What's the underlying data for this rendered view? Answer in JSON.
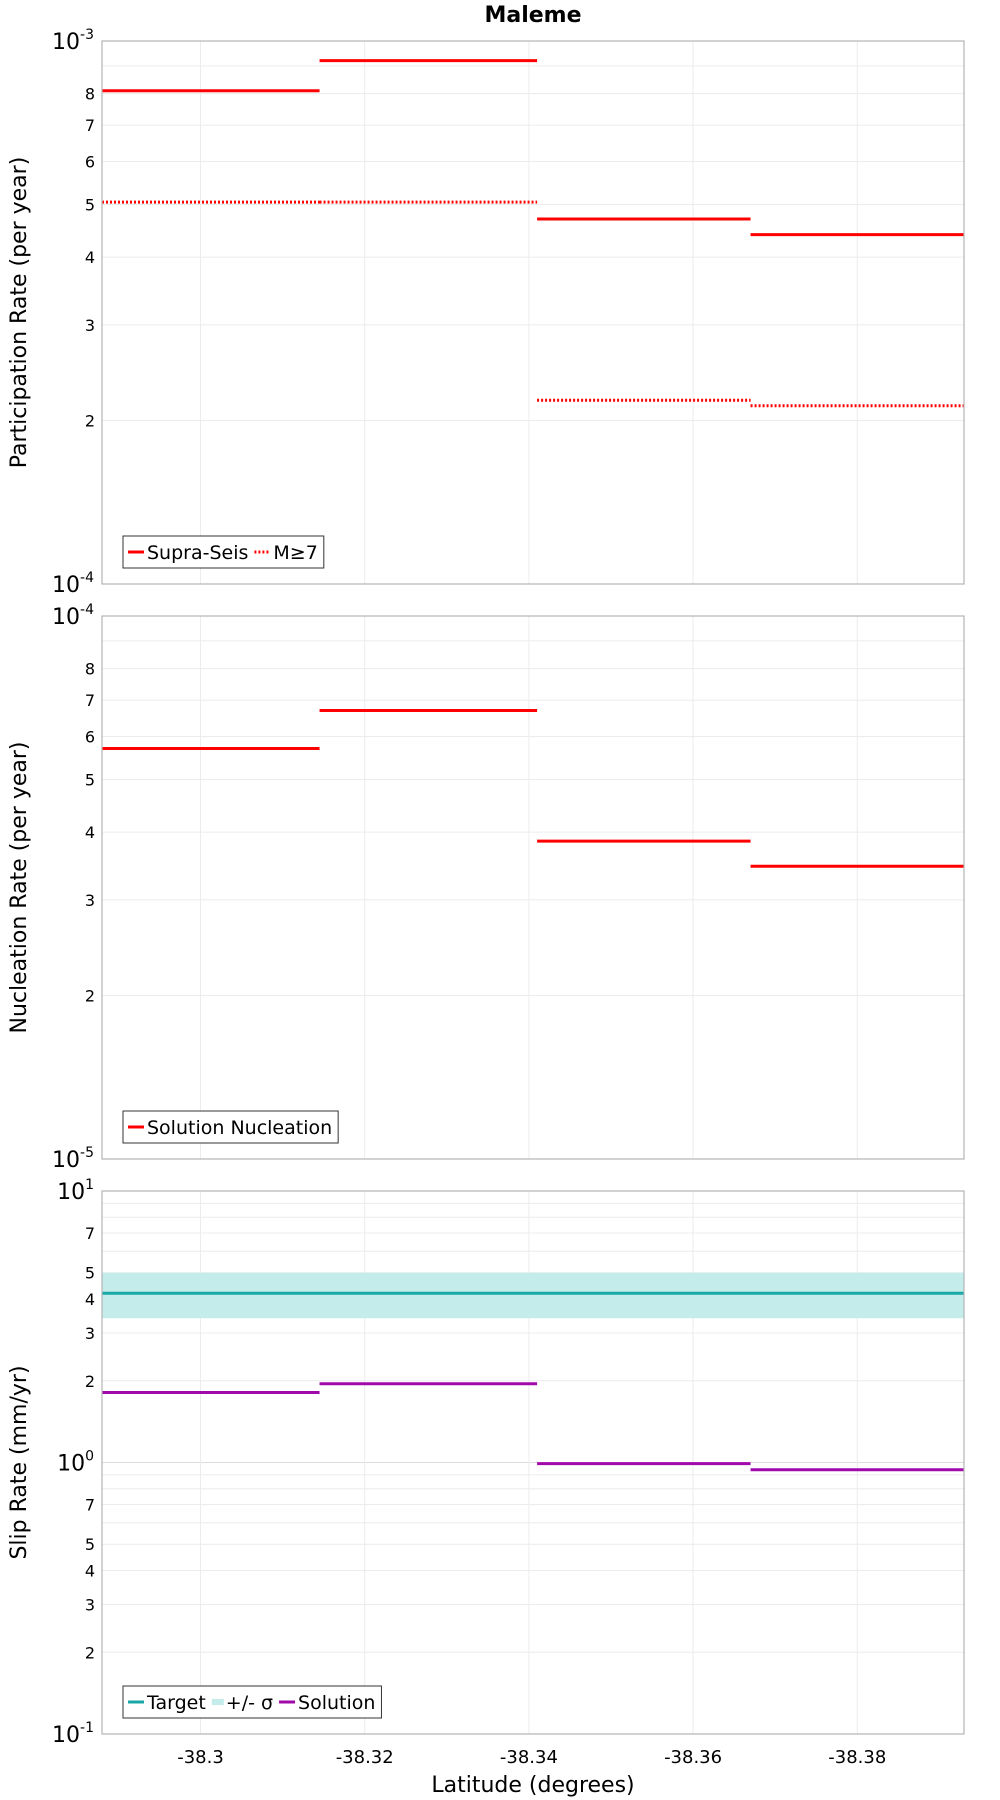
{
  "figure": {
    "title": "Maleme",
    "xlabel": "Latitude (degrees)"
  },
  "chart_data": [
    {
      "type": "line",
      "ylabel": "Participation Rate (per year)",
      "yscale": "log",
      "ylim": [
        0.0001,
        0.001
      ],
      "xlim": [
        -38.288,
        -38.393
      ],
      "x_axis_reversed": true,
      "x_ticks": [
        "-38.3",
        "-38.32",
        "-38.34",
        "-38.36",
        "-38.38"
      ],
      "y_major_labels": [
        {
          "base": "10",
          "exp": "-3",
          "value": 0.001
        },
        {
          "base": "10",
          "exp": "-4",
          "value": 0.0001
        }
      ],
      "y_minor_labels": [
        "2",
        "3",
        "4",
        "5",
        "6",
        "7",
        "8"
      ],
      "grid": true,
      "legend": {
        "placement": "bottom-left",
        "entries": [
          "Supra-Seis",
          "M≥7"
        ]
      },
      "series": [
        {
          "name": "Supra-Seis",
          "color": "#ff0000",
          "style": "solid",
          "segments": [
            {
              "x_start": -38.288,
              "x_end": -38.3145,
              "y": 0.00081
            },
            {
              "x_start": -38.3145,
              "x_end": -38.341,
              "y": 0.00092
            },
            {
              "x_start": -38.341,
              "x_end": -38.367,
              "y": 0.00047
            },
            {
              "x_start": -38.367,
              "x_end": -38.393,
              "y": 0.00044
            }
          ]
        },
        {
          "name": "M≥7",
          "color": "#ff0000",
          "style": "dotted",
          "segments": [
            {
              "x_start": -38.288,
              "x_end": -38.3145,
              "y": 0.000505
            },
            {
              "x_start": -38.3145,
              "x_end": -38.341,
              "y": 0.000505
            },
            {
              "x_start": -38.341,
              "x_end": -38.367,
              "y": 0.000218
            },
            {
              "x_start": -38.367,
              "x_end": -38.393,
              "y": 0.000213
            }
          ]
        }
      ]
    },
    {
      "type": "line",
      "ylabel": "Nucleation Rate (per year)",
      "yscale": "log",
      "ylim": [
        1e-05,
        0.0001
      ],
      "xlim": [
        -38.288,
        -38.393
      ],
      "x_axis_reversed": true,
      "x_ticks": [
        "-38.3",
        "-38.32",
        "-38.34",
        "-38.36",
        "-38.38"
      ],
      "y_major_labels": [
        {
          "base": "10",
          "exp": "-4",
          "value": 0.0001
        },
        {
          "base": "10",
          "exp": "-5",
          "value": 1e-05
        }
      ],
      "y_minor_labels": [
        "2",
        "3",
        "4",
        "5",
        "6",
        "7",
        "8"
      ],
      "grid": true,
      "legend": {
        "placement": "bottom-left",
        "entries": [
          "Solution Nucleation"
        ]
      },
      "series": [
        {
          "name": "Solution Nucleation",
          "color": "#ff0000",
          "style": "solid",
          "segments": [
            {
              "x_start": -38.288,
              "x_end": -38.3145,
              "y": 5.7e-05
            },
            {
              "x_start": -38.3145,
              "x_end": -38.341,
              "y": 6.7e-05
            },
            {
              "x_start": -38.341,
              "x_end": -38.367,
              "y": 3.85e-05
            },
            {
              "x_start": -38.367,
              "x_end": -38.393,
              "y": 3.46e-05
            }
          ]
        }
      ]
    },
    {
      "type": "line",
      "ylabel": "Slip Rate (mm/yr)",
      "yscale": "log",
      "ylim": [
        0.1,
        10
      ],
      "xlim": [
        -38.288,
        -38.393
      ],
      "x_axis_reversed": true,
      "x_ticks": [
        "-38.3",
        "-38.32",
        "-38.34",
        "-38.36",
        "-38.38"
      ],
      "y_major_labels": [
        {
          "base": "10",
          "exp": "1",
          "value": 10
        },
        {
          "base": "10",
          "exp": "0",
          "value": 1
        },
        {
          "base": "10",
          "exp": "-1",
          "value": 0.1
        }
      ],
      "y_minor_labels": [
        "2",
        "3",
        "4",
        "5",
        "7",
        "2",
        "3",
        "4",
        "5",
        "7"
      ],
      "grid": true,
      "legend": {
        "placement": "bottom-left",
        "entries": [
          "Target",
          "+/- σ",
          "Solution"
        ]
      },
      "band": {
        "name": "+/- σ",
        "color": "#c3eceb",
        "y_low": 3.4,
        "y_high": 5.0
      },
      "series": [
        {
          "name": "Target",
          "color": "#1aa8a6",
          "style": "solid",
          "segments": [
            {
              "x_start": -38.288,
              "x_end": -38.393,
              "y": 4.2
            }
          ]
        },
        {
          "name": "Solution",
          "color": "#a10aaa",
          "style": "solid",
          "segments": [
            {
              "x_start": -38.288,
              "x_end": -38.3145,
              "y": 1.81
            },
            {
              "x_start": -38.3145,
              "x_end": -38.341,
              "y": 1.95
            },
            {
              "x_start": -38.341,
              "x_end": -38.367,
              "y": 0.99
            },
            {
              "x_start": -38.367,
              "x_end": -38.393,
              "y": 0.94
            }
          ]
        }
      ]
    }
  ]
}
